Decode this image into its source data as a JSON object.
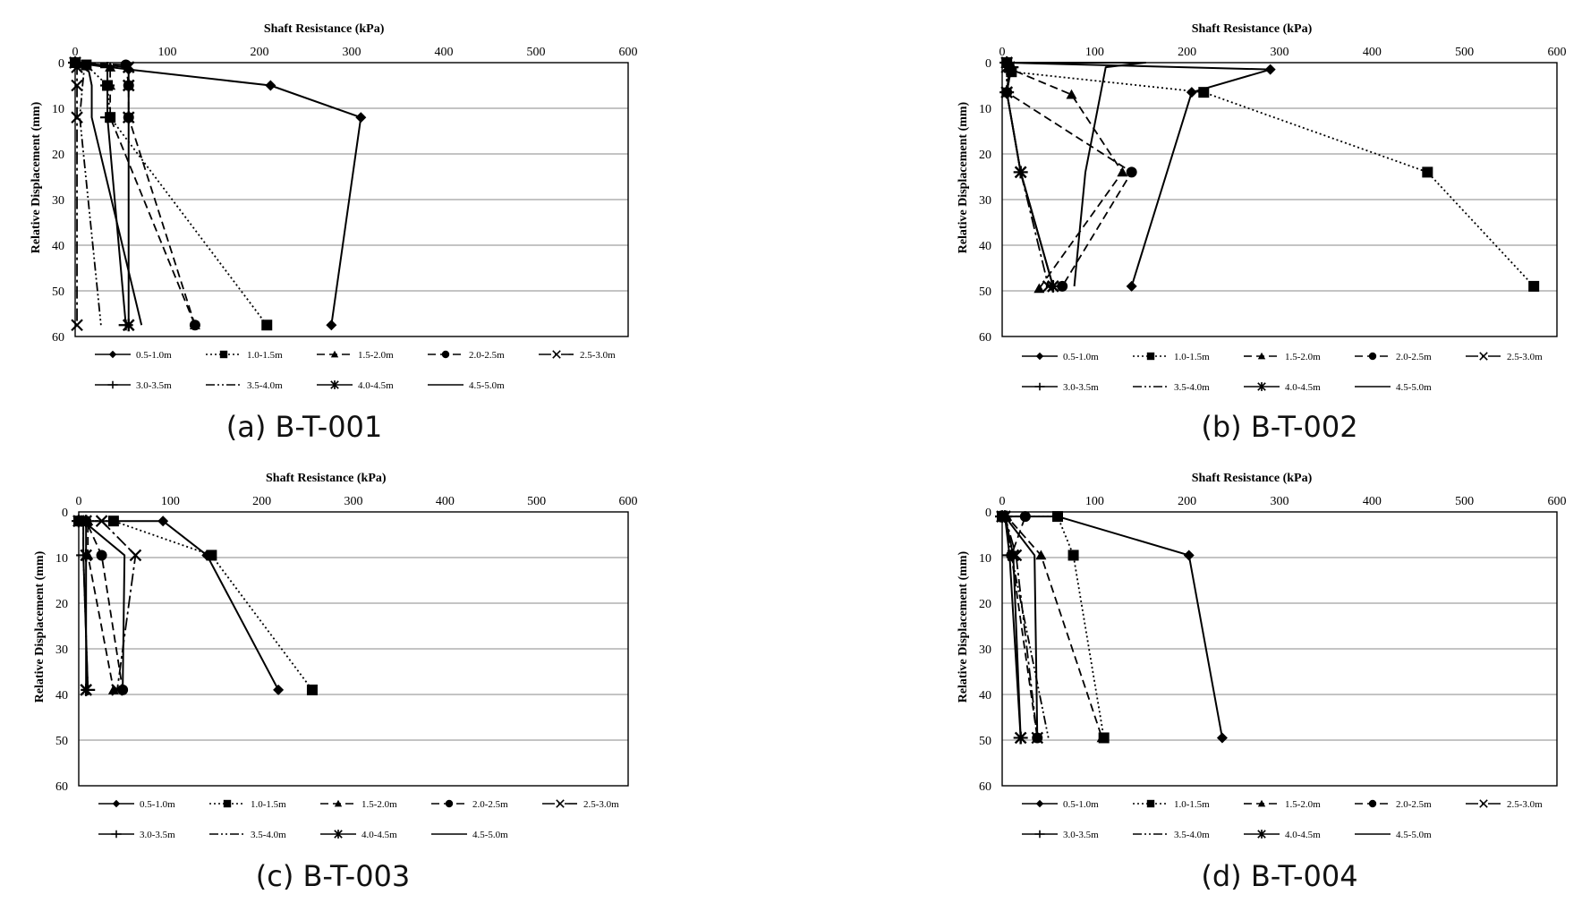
{
  "chart_data": [
    {
      "type": "line",
      "caption": "(a) B-T-001",
      "xlabel": "Shaft Resistance (kPa)",
      "ylabel": "Relative Displacement (mm)",
      "xlim": [
        0,
        600
      ],
      "ylim": [
        0,
        60
      ],
      "x_ticks": [
        0,
        100,
        200,
        300,
        400,
        500,
        600
      ],
      "y_ticks": [
        0,
        10,
        20,
        30,
        40,
        50,
        60
      ],
      "y_inverted": true,
      "grid": "horizontal",
      "legend_position": "bottom",
      "series": [
        {
          "name": "0.5-1.0m",
          "style": "solid",
          "marker": "diamond",
          "points": [
            [
              0,
              0
            ],
            [
              58,
              1.5
            ],
            [
              212,
              5
            ],
            [
              310,
              12
            ],
            [
              278,
              57.5
            ]
          ]
        },
        {
          "name": "1.0-1.5m",
          "style": "dotted",
          "marker": "square",
          "points": [
            [
              0,
              0
            ],
            [
              12,
              0.5
            ],
            [
              35,
              5
            ],
            [
              38,
              12
            ],
            [
              208,
              57.5
            ]
          ]
        },
        {
          "name": "1.5-2.0m",
          "style": "dashed",
          "marker": "triangle",
          "points": [
            [
              0,
              0
            ],
            [
              38,
              1
            ],
            [
              38,
              5
            ],
            [
              38,
              12
            ],
            [
              130,
              57.5
            ]
          ]
        },
        {
          "name": "2.0-2.5m",
          "style": "dashed",
          "marker": "circle",
          "points": [
            [
              0,
              0
            ],
            [
              55,
              0.5
            ],
            [
              58,
              5
            ],
            [
              58,
              12
            ],
            [
              130,
              57.5
            ]
          ]
        },
        {
          "name": "2.5-3.0m",
          "style": "dashdot",
          "marker": "x",
          "points": [
            [
              0,
              0
            ],
            [
              2,
              1
            ],
            [
              2,
              5
            ],
            [
              2,
              12
            ],
            [
              2,
              57.5
            ]
          ]
        },
        {
          "name": "3.0-3.5m",
          "style": "solid",
          "marker": "plus",
          "points": [
            [
              0,
              0
            ],
            [
              35,
              1
            ],
            [
              35,
              5
            ],
            [
              35,
              12
            ],
            [
              55,
              57.5
            ]
          ]
        },
        {
          "name": "3.5-4.0m",
          "style": "dashdotdot",
          "marker": "none",
          "points": [
            [
              0,
              0
            ],
            [
              10,
              1
            ],
            [
              8,
              5
            ],
            [
              5,
              12
            ],
            [
              28,
              57.5
            ]
          ]
        },
        {
          "name": "4.0-4.5m",
          "style": "solid",
          "marker": "star",
          "points": [
            [
              0,
              0
            ],
            [
              58,
              1
            ],
            [
              58,
              5
            ],
            [
              58,
              12
            ],
            [
              58,
              57.5
            ]
          ]
        },
        {
          "name": "4.5-5.0m",
          "style": "solid",
          "marker": "none",
          "points": [
            [
              0,
              0
            ],
            [
              15,
              2
            ],
            [
              18,
              5
            ],
            [
              18,
              12
            ],
            [
              72,
              57.5
            ]
          ]
        }
      ]
    },
    {
      "type": "line",
      "caption": "(b) B-T-002",
      "xlabel": "Shaft Resistance (kPa)",
      "ylabel": "Relative Displacement (mm)",
      "xlim": [
        0,
        600
      ],
      "ylim": [
        0,
        60
      ],
      "x_ticks": [
        0,
        100,
        200,
        300,
        400,
        500,
        600
      ],
      "y_ticks": [
        0,
        10,
        20,
        30,
        40,
        50,
        60
      ],
      "y_inverted": true,
      "grid": "horizontal",
      "legend_position": "bottom",
      "series": [
        {
          "name": "0.5-1.0m",
          "style": "solid",
          "marker": "diamond",
          "points": [
            [
              5,
              0
            ],
            [
              290,
              1.5
            ],
            [
              205,
              6.5
            ],
            [
              140,
              49
            ]
          ]
        },
        {
          "name": "1.0-1.5m",
          "style": "dotted",
          "marker": "square",
          "points": [
            [
              5,
              0
            ],
            [
              10,
              2
            ],
            [
              218,
              6.5
            ],
            [
              460,
              24
            ],
            [
              575,
              49
            ]
          ]
        },
        {
          "name": "1.5-2.0m",
          "style": "dashed",
          "marker": "triangle",
          "points": [
            [
              5,
              0
            ],
            [
              10,
              1.5
            ],
            [
              75,
              7
            ],
            [
              130,
              24
            ],
            [
              40,
              49.5
            ]
          ]
        },
        {
          "name": "2.0-2.5m",
          "style": "dashed",
          "marker": "circle",
          "points": [
            [
              5,
              0
            ],
            [
              8,
              1
            ],
            [
              5,
              6.5
            ],
            [
              140,
              24
            ],
            [
              65,
              49
            ]
          ]
        },
        {
          "name": "2.5-3.0m",
          "style": "dashdot",
          "marker": "x",
          "points": [
            [
              5,
              0
            ],
            [
              5,
              1
            ],
            [
              5,
              6.5
            ],
            [
              20,
              24
            ],
            [
              50,
              49
            ]
          ]
        },
        {
          "name": "3.0-3.5m",
          "style": "solid",
          "marker": "plus",
          "points": [
            [
              5,
              0
            ],
            [
              10,
              1
            ],
            [
              5,
              6.5
            ],
            [
              20,
              24
            ],
            [
              55,
              49
            ]
          ]
        },
        {
          "name": "3.5-4.0m",
          "style": "dashdotdot",
          "marker": "none",
          "points": [
            [
              5,
              0
            ],
            [
              10,
              1
            ],
            [
              5,
              6.5
            ],
            [
              20,
              24
            ],
            [
              55,
              49
            ]
          ]
        },
        {
          "name": "4.0-4.5m",
          "style": "solid",
          "marker": "star",
          "points": [
            [
              5,
              0
            ],
            [
              8,
              1
            ],
            [
              5,
              6.5
            ],
            [
              20,
              24
            ],
            [
              55,
              49
            ]
          ]
        },
        {
          "name": "4.5-5.0m",
          "style": "solid",
          "marker": "none",
          "points": [
            [
              5,
              0
            ],
            [
              155,
              0
            ],
            [
              112,
              1
            ],
            [
              90,
              24
            ],
            [
              78,
              49
            ]
          ]
        }
      ]
    },
    {
      "type": "line",
      "caption": "(c) B-T-003",
      "xlabel": "Shaft Resistance (kPa)",
      "ylabel": "Relative Displacement (mm)",
      "xlim": [
        0,
        600
      ],
      "ylim": [
        0,
        60
      ],
      "x_ticks": [
        0,
        100,
        200,
        300,
        400,
        500,
        600
      ],
      "y_ticks": [
        0,
        10,
        20,
        30,
        40,
        50,
        60
      ],
      "y_inverted": true,
      "grid": "horizontal",
      "legend_position": "bottom",
      "series": [
        {
          "name": "0.5-1.0m",
          "style": "solid",
          "marker": "diamond",
          "points": [
            [
              0,
              2
            ],
            [
              92,
              2
            ],
            [
              140,
              9.5
            ],
            [
              218,
              39
            ]
          ]
        },
        {
          "name": "1.0-1.5m",
          "style": "dotted",
          "marker": "square",
          "points": [
            [
              0,
              2
            ],
            [
              38,
              2
            ],
            [
              145,
              9.5
            ],
            [
              255,
              39
            ]
          ]
        },
        {
          "name": "1.5-2.0m",
          "style": "dashed",
          "marker": "triangle",
          "points": [
            [
              0,
              2
            ],
            [
              10,
              2
            ],
            [
              10,
              9.5
            ],
            [
              38,
              39
            ]
          ]
        },
        {
          "name": "2.0-2.5m",
          "style": "dashed",
          "marker": "circle",
          "points": [
            [
              0,
              2
            ],
            [
              8,
              2
            ],
            [
              25,
              9.5
            ],
            [
              48,
              39
            ]
          ]
        },
        {
          "name": "2.5-3.0m",
          "style": "dashdot",
          "marker": "x",
          "points": [
            [
              0,
              2
            ],
            [
              25,
              2
            ],
            [
              62,
              9.5
            ],
            [
              42,
              39
            ]
          ]
        },
        {
          "name": "3.0-3.5m",
          "style": "solid",
          "marker": "plus",
          "points": [
            [
              0,
              2
            ],
            [
              5,
              2
            ],
            [
              5,
              9.5
            ],
            [
              10,
              39
            ]
          ]
        },
        {
          "name": "3.5-4.0m",
          "style": "dashdotdot",
          "marker": "none",
          "points": [
            [
              0,
              2
            ],
            [
              5,
              2
            ],
            [
              5,
              9.5
            ],
            [
              10,
              39
            ]
          ]
        },
        {
          "name": "4.0-4.5m",
          "style": "solid",
          "marker": "star",
          "points": [
            [
              0,
              2
            ],
            [
              8,
              2
            ],
            [
              8,
              9.5
            ],
            [
              8,
              39
            ]
          ]
        },
        {
          "name": "4.5-5.0m",
          "style": "solid",
          "marker": "none",
          "points": [
            [
              0,
              2
            ],
            [
              5,
              2
            ],
            [
              50,
              9.5
            ],
            [
              48,
              39
            ]
          ]
        }
      ]
    },
    {
      "type": "line",
      "caption": "(d) B-T-004",
      "xlabel": "Shaft Resistance (kPa)",
      "ylabel": "Relative Displacement (mm)",
      "xlim": [
        0,
        600
      ],
      "ylim": [
        0,
        60
      ],
      "x_ticks": [
        0,
        100,
        200,
        300,
        400,
        500,
        600
      ],
      "y_ticks": [
        0,
        10,
        20,
        30,
        40,
        50,
        60
      ],
      "y_inverted": true,
      "grid": "horizontal",
      "legend_position": "bottom",
      "series": [
        {
          "name": "0.5-1.0m",
          "style": "solid",
          "marker": "diamond",
          "points": [
            [
              0,
              1
            ],
            [
              60,
              1
            ],
            [
              202,
              9.5
            ],
            [
              238,
              49.5
            ]
          ]
        },
        {
          "name": "1.0-1.5m",
          "style": "dotted",
          "marker": "square",
          "points": [
            [
              0,
              1
            ],
            [
              60,
              1
            ],
            [
              77,
              9.5
            ],
            [
              110,
              49.5
            ]
          ]
        },
        {
          "name": "1.5-2.0m",
          "style": "dashed",
          "marker": "triangle",
          "points": [
            [
              0,
              1
            ],
            [
              5,
              1
            ],
            [
              42,
              9.5
            ],
            [
              108,
              49.5
            ]
          ]
        },
        {
          "name": "2.0-2.5m",
          "style": "dashed",
          "marker": "circle",
          "points": [
            [
              0,
              1
            ],
            [
              25,
              1
            ],
            [
              10,
              9.5
            ],
            [
              38,
              49.5
            ]
          ]
        },
        {
          "name": "2.5-3.0m",
          "style": "dashdot",
          "marker": "x",
          "points": [
            [
              0,
              1
            ],
            [
              3,
              1
            ],
            [
              15,
              9.5
            ],
            [
              38,
              49.5
            ]
          ]
        },
        {
          "name": "3.0-3.5m",
          "style": "solid",
          "marker": "plus",
          "points": [
            [
              0,
              1
            ],
            [
              3,
              1
            ],
            [
              8,
              9.5
            ],
            [
              20,
              49.5
            ]
          ]
        },
        {
          "name": "3.5-4.0m",
          "style": "dashdotdot",
          "marker": "none",
          "points": [
            [
              0,
              1
            ],
            [
              3,
              1
            ],
            [
              10,
              9.5
            ],
            [
              50,
              49.5
            ]
          ]
        },
        {
          "name": "4.0-4.5m",
          "style": "solid",
          "marker": "star",
          "points": [
            [
              0,
              1
            ],
            [
              3,
              1
            ],
            [
              12,
              9.5
            ],
            [
              20,
              49.5
            ]
          ]
        },
        {
          "name": "4.5-5.0m",
          "style": "solid",
          "marker": "none",
          "points": [
            [
              0,
              1
            ],
            [
              3,
              1
            ],
            [
              35,
              9.5
            ],
            [
              38,
              49.5
            ]
          ]
        }
      ]
    }
  ]
}
